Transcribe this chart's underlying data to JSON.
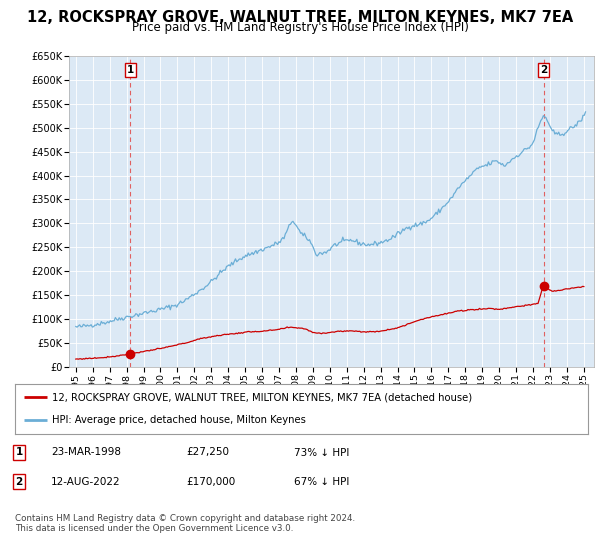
{
  "title": "12, ROCKSPRAY GROVE, WALNUT TREE, MILTON KEYNES, MK7 7EA",
  "subtitle": "Price paid vs. HM Land Registry's House Price Index (HPI)",
  "title_fontsize": 10.5,
  "subtitle_fontsize": 8.5,
  "plot_bg_color": "#dce9f5",
  "hpi_color": "#6baed6",
  "price_color": "#cc0000",
  "dashed_color": "#e06060",
  "ylim": [
    0,
    650000
  ],
  "yticks": [
    0,
    50000,
    100000,
    150000,
    200000,
    250000,
    300000,
    350000,
    400000,
    450000,
    500000,
    550000,
    600000,
    650000
  ],
  "ytick_labels": [
    "£0",
    "£50K",
    "£100K",
    "£150K",
    "£200K",
    "£250K",
    "£300K",
    "£350K",
    "£400K",
    "£450K",
    "£500K",
    "£550K",
    "£600K",
    "£650K"
  ],
  "xlabel_years": [
    "1995",
    "1996",
    "1997",
    "1998",
    "1999",
    "2000",
    "2001",
    "2002",
    "2003",
    "2004",
    "2005",
    "2006",
    "2007",
    "2008",
    "2009",
    "2010",
    "2011",
    "2012",
    "2013",
    "2014",
    "2015",
    "2016",
    "2017",
    "2018",
    "2019",
    "2020",
    "2021",
    "2022",
    "2023",
    "2024",
    "2025"
  ],
  "xlim_left": 1994.6,
  "xlim_right": 2025.6,
  "sale1_x": 1998.22,
  "sale1_y": 27250,
  "sale1_label": "1",
  "sale2_x": 2022.62,
  "sale2_y": 170000,
  "sale2_label": "2",
  "legend_line1": "12, ROCKSPRAY GROVE, WALNUT TREE, MILTON KEYNES, MK7 7EA (detached house)",
  "legend_line2": "HPI: Average price, detached house, Milton Keynes",
  "table_row1": [
    "1",
    "23-MAR-1998",
    "£27,250",
    "73% ↓ HPI"
  ],
  "table_row2": [
    "2",
    "12-AUG-2022",
    "£170,000",
    "67% ↓ HPI"
  ],
  "footer": "Contains HM Land Registry data © Crown copyright and database right 2024.\nThis data is licensed under the Open Government Licence v3.0.",
  "hpi_key_years": [
    1995.0,
    1995.5,
    1996.0,
    1996.5,
    1997.0,
    1997.5,
    1998.0,
    1998.5,
    1999.0,
    1999.5,
    2000.0,
    2000.5,
    2001.0,
    2001.5,
    2002.0,
    2002.5,
    2003.0,
    2003.5,
    2004.0,
    2004.5,
    2005.0,
    2005.5,
    2006.0,
    2006.5,
    2007.0,
    2007.3,
    2007.8,
    2008.3,
    2008.8,
    2009.2,
    2009.8,
    2010.3,
    2010.8,
    2011.3,
    2011.8,
    2012.3,
    2012.8,
    2013.3,
    2013.8,
    2014.3,
    2014.8,
    2015.3,
    2015.8,
    2016.3,
    2016.8,
    2017.3,
    2017.6,
    2017.9,
    2018.3,
    2018.6,
    2018.9,
    2019.3,
    2019.6,
    2019.9,
    2020.3,
    2020.8,
    2021.3,
    2021.8,
    2022.0,
    2022.3,
    2022.6,
    2022.8,
    2023.1,
    2023.5,
    2023.9,
    2024.3,
    2024.7,
    2025.1
  ],
  "hpi_key_values": [
    83000,
    85000,
    88000,
    91000,
    95000,
    100000,
    104000,
    108000,
    112000,
    116000,
    120000,
    125000,
    130000,
    140000,
    152000,
    164000,
    178000,
    195000,
    210000,
    222000,
    232000,
    238000,
    245000,
    252000,
    260000,
    270000,
    308000,
    278000,
    265000,
    235000,
    240000,
    255000,
    262000,
    265000,
    258000,
    255000,
    258000,
    263000,
    272000,
    285000,
    295000,
    298000,
    305000,
    320000,
    338000,
    358000,
    375000,
    385000,
    400000,
    410000,
    418000,
    422000,
    428000,
    430000,
    420000,
    435000,
    448000,
    460000,
    468000,
    500000,
    525000,
    520000,
    492000,
    485000,
    490000,
    500000,
    510000,
    530000
  ],
  "price_key_years": [
    1995.0,
    1995.5,
    1996.0,
    1996.5,
    1997.0,
    1997.5,
    1998.0,
    1998.5,
    1999.0,
    1999.5,
    2000.0,
    2000.5,
    2001.0,
    2001.5,
    2002.0,
    2002.5,
    2003.0,
    2003.5,
    2004.0,
    2004.5,
    2005.0,
    2005.5,
    2006.0,
    2006.5,
    2007.0,
    2007.5,
    2008.0,
    2008.5,
    2009.0,
    2009.5,
    2010.0,
    2010.5,
    2011.0,
    2011.5,
    2012.0,
    2012.5,
    2013.0,
    2013.5,
    2014.0,
    2014.5,
    2015.0,
    2015.5,
    2016.0,
    2016.5,
    2017.0,
    2017.5,
    2018.0,
    2018.5,
    2019.0,
    2019.5,
    2020.0,
    2020.5,
    2021.0,
    2021.5,
    2022.0,
    2022.3,
    2022.6,
    2022.9,
    2023.2,
    2023.6,
    2024.0,
    2024.5,
    2025.0
  ],
  "price_key_values": [
    16000,
    17000,
    18000,
    19000,
    21000,
    23000,
    26000,
    29000,
    32000,
    35000,
    38000,
    42000,
    46000,
    50000,
    55000,
    60000,
    63000,
    66000,
    68000,
    70000,
    72000,
    74000,
    74000,
    76000,
    78000,
    82000,
    82000,
    80000,
    72000,
    70000,
    72000,
    74000,
    75000,
    75000,
    73000,
    73000,
    75000,
    78000,
    82000,
    87000,
    95000,
    100000,
    105000,
    108000,
    112000,
    116000,
    118000,
    120000,
    121000,
    122000,
    120000,
    123000,
    126000,
    128000,
    130000,
    133000,
    170000,
    162000,
    158000,
    160000,
    163000,
    165000,
    168000
  ]
}
